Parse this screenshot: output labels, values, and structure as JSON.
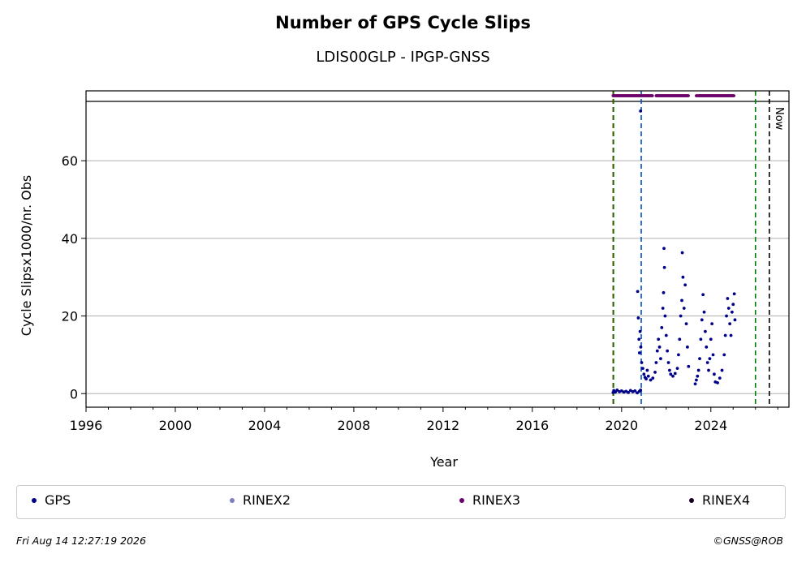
{
  "chart_data": {
    "type": "scatter",
    "title": "Number of GPS Cycle Slips",
    "subtitle": "LDIS00GLP - IPGP-GNSS",
    "xlabel": "Year",
    "ylabel": "Cycle Slipsx1000/nr. Obs",
    "xlim": [
      1996,
      2027.5
    ],
    "ylim": [
      -3.5,
      78
    ],
    "x_ticks": [
      1996,
      2000,
      2004,
      2008,
      2012,
      2016,
      2020,
      2024
    ],
    "y_ticks": [
      0,
      20,
      40,
      60
    ],
    "grid": "horizontal",
    "legend_placement": "bottom",
    "series": [
      {
        "name": "GPS",
        "color": "#00008b",
        "points": [
          [
            2019.62,
            0.3
          ],
          [
            2019.65,
            0.8
          ],
          [
            2019.72,
            0.4
          ],
          [
            2019.8,
            0.9
          ],
          [
            2019.9,
            0.5
          ],
          [
            2020.0,
            0.7
          ],
          [
            2020.1,
            0.4
          ],
          [
            2020.2,
            0.6
          ],
          [
            2020.3,
            0.3
          ],
          [
            2020.4,
            0.8
          ],
          [
            2020.5,
            0.5
          ],
          [
            2020.6,
            0.7
          ],
          [
            2020.7,
            0.2
          ],
          [
            2020.8,
            0.6
          ],
          [
            2020.85,
            0.9
          ],
          [
            2020.72,
            26.3
          ],
          [
            2020.85,
            72.8
          ],
          [
            2020.75,
            19.5
          ],
          [
            2020.78,
            14.0
          ],
          [
            2020.8,
            10.5
          ],
          [
            2020.83,
            16.0
          ],
          [
            2020.86,
            12.0
          ],
          [
            2020.9,
            8.0
          ],
          [
            2020.95,
            6.5
          ],
          [
            2021.0,
            5.0
          ],
          [
            2021.05,
            4.2
          ],
          [
            2021.1,
            3.8
          ],
          [
            2021.15,
            6.0
          ],
          [
            2021.2,
            4.5
          ],
          [
            2021.3,
            3.5
          ],
          [
            2021.4,
            4.0
          ],
          [
            2021.5,
            5.5
          ],
          [
            2021.55,
            8.0
          ],
          [
            2021.6,
            11.0
          ],
          [
            2021.65,
            14.0
          ],
          [
            2021.7,
            12.0
          ],
          [
            2021.75,
            9.0
          ],
          [
            2021.8,
            17.0
          ],
          [
            2021.85,
            22.0
          ],
          [
            2021.88,
            26.0
          ],
          [
            2021.9,
            37.4
          ],
          [
            2021.92,
            32.5
          ],
          [
            2021.95,
            20.0
          ],
          [
            2022.0,
            15.0
          ],
          [
            2022.05,
            11.0
          ],
          [
            2022.1,
            8.0
          ],
          [
            2022.15,
            6.0
          ],
          [
            2022.2,
            5.0
          ],
          [
            2022.3,
            4.5
          ],
          [
            2022.4,
            5.2
          ],
          [
            2022.5,
            6.5
          ],
          [
            2022.55,
            10.0
          ],
          [
            2022.6,
            14.0
          ],
          [
            2022.65,
            20.0
          ],
          [
            2022.7,
            24.0
          ],
          [
            2022.72,
            36.3
          ],
          [
            2022.75,
            30.0
          ],
          [
            2022.8,
            22.0
          ],
          [
            2022.85,
            28.0
          ],
          [
            2022.9,
            18.0
          ],
          [
            2022.95,
            12.0
          ],
          [
            2023.0,
            7.0
          ],
          [
            2023.3,
            2.5
          ],
          [
            2023.35,
            3.5
          ],
          [
            2023.4,
            4.5
          ],
          [
            2023.45,
            6.0
          ],
          [
            2023.5,
            9.0
          ],
          [
            2023.55,
            14.0
          ],
          [
            2023.6,
            19.0
          ],
          [
            2023.65,
            25.5
          ],
          [
            2023.7,
            21.0
          ],
          [
            2023.75,
            16.0
          ],
          [
            2023.8,
            12.0
          ],
          [
            2023.85,
            8.0
          ],
          [
            2023.9,
            6.0
          ],
          [
            2023.95,
            9.0
          ],
          [
            2024.0,
            14.0
          ],
          [
            2024.05,
            18.0
          ],
          [
            2024.1,
            10.0
          ],
          [
            2024.15,
            5.0
          ],
          [
            2024.2,
            3.0
          ],
          [
            2024.3,
            2.8
          ],
          [
            2024.4,
            4.0
          ],
          [
            2024.5,
            6.0
          ],
          [
            2024.6,
            10.0
          ],
          [
            2024.65,
            15.0
          ],
          [
            2024.7,
            20.0
          ],
          [
            2024.75,
            24.5
          ],
          [
            2024.8,
            22.0
          ],
          [
            2024.85,
            18.0
          ],
          [
            2024.9,
            15.0
          ],
          [
            2024.95,
            21.0
          ],
          [
            2025.0,
            23.0
          ],
          [
            2025.05,
            25.7
          ],
          [
            2025.08,
            19.0
          ]
        ]
      },
      {
        "name": "RINEX2",
        "color": "#7f7fbf",
        "points": []
      },
      {
        "name": "RINEX3",
        "color": "#6b006b",
        "segments": [
          [
            2019.62,
            2021.4
          ],
          [
            2021.55,
            2023.0
          ],
          [
            2023.35,
            2025.05
          ]
        ],
        "y": 78
      },
      {
        "name": "RINEX4",
        "color": "#1a0020",
        "points": []
      }
    ],
    "vertical_lines": [
      {
        "x": 2019.62,
        "color": "#cc0000",
        "style": "dashed"
      },
      {
        "x": 2019.64,
        "color": "#008000",
        "style": "dashed"
      },
      {
        "x": 2020.88,
        "color": "#0050c8",
        "style": "dashed"
      },
      {
        "x": 2026.0,
        "color": "#008000",
        "style": "dashed"
      },
      {
        "x": 2026.62,
        "color": "#000000",
        "style": "dashed",
        "label": "Now"
      }
    ]
  },
  "legend": [
    {
      "label": "GPS",
      "color": "#00008b"
    },
    {
      "label": "RINEX2",
      "color": "#7f7fbf"
    },
    {
      "label": "RINEX3",
      "color": "#6b006b"
    },
    {
      "label": "RINEX4",
      "color": "#1a0020"
    }
  ],
  "footer": {
    "timestamp": "Fri Aug 14 12:27:19 2026",
    "copyright": "©GNSS@ROB"
  }
}
